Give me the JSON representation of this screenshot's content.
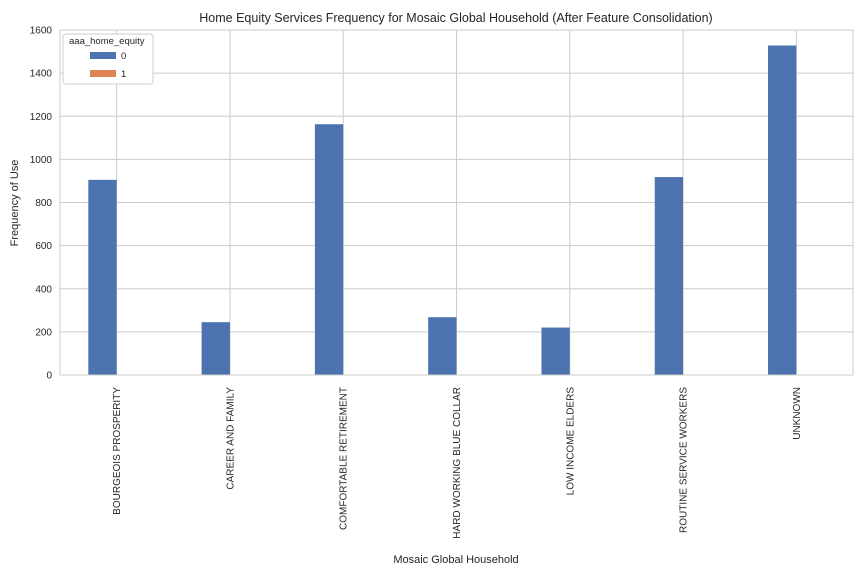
{
  "chart_data": {
    "type": "bar",
    "title": "Home Equity Services Frequency for Mosaic Global Household (After Feature Consolidation)",
    "xlabel": "Mosaic Global Household",
    "ylabel": "Frequency of Use",
    "categories": [
      "BOURGEOIS PROSPERITY",
      "CAREER AND FAMILY",
      "COMFORTABLE RETIREMENT",
      "HARD WORKING BLUE COLLAR",
      "LOW INCOME ELDERS",
      "ROUTINE SERVICE WORKERS",
      "UNKNOWN"
    ],
    "series": [
      {
        "name": "0",
        "color": "#4c72b0",
        "values": [
          905,
          245,
          1163,
          268,
          220,
          918,
          1528
        ]
      },
      {
        "name": "1",
        "color": "#dd8452",
        "values": [
          0,
          0,
          0,
          0,
          0,
          0,
          0
        ]
      }
    ],
    "ylim": [
      0,
      1600
    ],
    "yticks": [
      0,
      200,
      400,
      600,
      800,
      1000,
      1200,
      1400,
      1600
    ],
    "grid": true,
    "legend": {
      "title": "aaa_home_equity",
      "placement": "top-left"
    }
  }
}
